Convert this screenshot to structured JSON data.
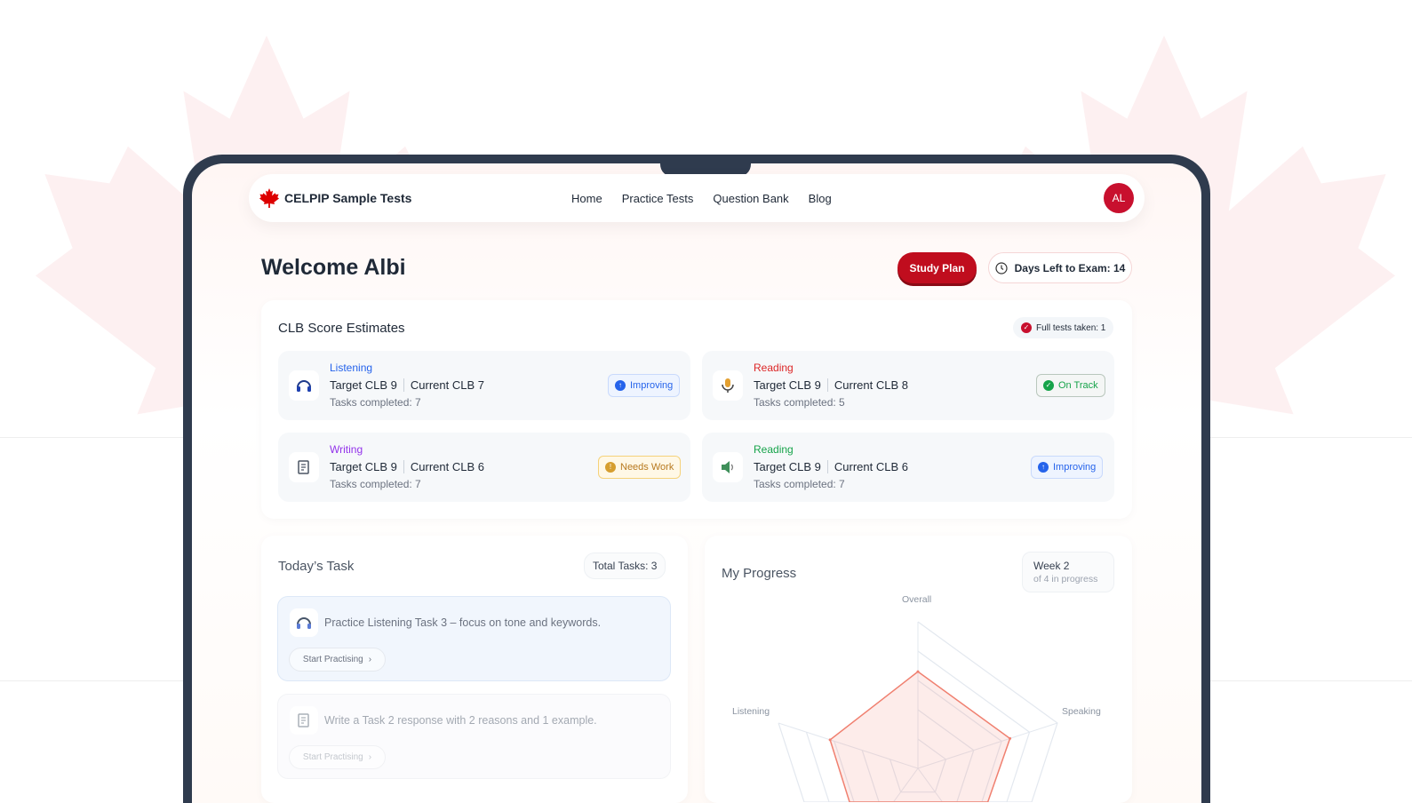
{
  "brand": {
    "name": "CELPIP Sample Tests",
    "accent": "#c8102e"
  },
  "nav": {
    "items": [
      "Home",
      "Practice Tests",
      "Question Bank",
      "Blog"
    ],
    "avatar_initials": "AL"
  },
  "header": {
    "welcome": "Welcome Albi",
    "study_plan": "Study Plan",
    "days_left": "Days Left to Exam: 14"
  },
  "scores": {
    "title": "CLB Score Estimates",
    "full_tests": "Full tests taken: 1",
    "items": [
      {
        "skill": "Listening",
        "color": "#2563eb",
        "icon": "headphones-icon",
        "target": "Target CLB 9",
        "current": "Current CLB 7",
        "tasks": "Tasks completed: 7",
        "status": "Improving",
        "status_icon": "arrow-up-icon"
      },
      {
        "skill": "Reading",
        "color": "#dc2626",
        "icon": "microphone-icon",
        "target": "Target CLB 9",
        "current": "Current CLB 8",
        "tasks": "Tasks completed: 5",
        "status": "On Track",
        "status_icon": "check-icon"
      },
      {
        "skill": "Writing",
        "color": "#9333ea",
        "icon": "document-icon",
        "target": "Target CLB 9",
        "current": "Current CLB 6",
        "tasks": "Tasks completed: 7",
        "status": "Needs Work",
        "status_icon": "alert-icon"
      },
      {
        "skill": "Reading",
        "color": "#16a34a",
        "icon": "speaker-icon",
        "target": "Target CLB 9",
        "current": "Current CLB 6",
        "tasks": "Tasks completed: 7",
        "status": "Improving",
        "status_icon": "arrow-up-icon"
      }
    ]
  },
  "today": {
    "title": "Today’s Task",
    "total": "Total Tasks: 3",
    "tasks": [
      {
        "text": "Practice Listening Task 3 – focus on tone and keywords.",
        "button": "Start Practising",
        "icon": "headphones-icon"
      },
      {
        "text": "Write a Task 2 response with 2 reasons and 1 example.",
        "button": "Start Practising",
        "icon": "document-icon"
      }
    ]
  },
  "progress": {
    "title": "My Progress",
    "week": "Week 2",
    "week_sub": "of 4 in progress"
  },
  "chart_data": {
    "type": "radar",
    "axes": [
      "Overall",
      "Speaking",
      "",
      "",
      "Listening"
    ],
    "values": [
      6.6,
      6.6,
      6.4,
      6.4,
      6.3
    ],
    "range": [
      0,
      10
    ],
    "rings": 5,
    "color": "#f08070"
  }
}
